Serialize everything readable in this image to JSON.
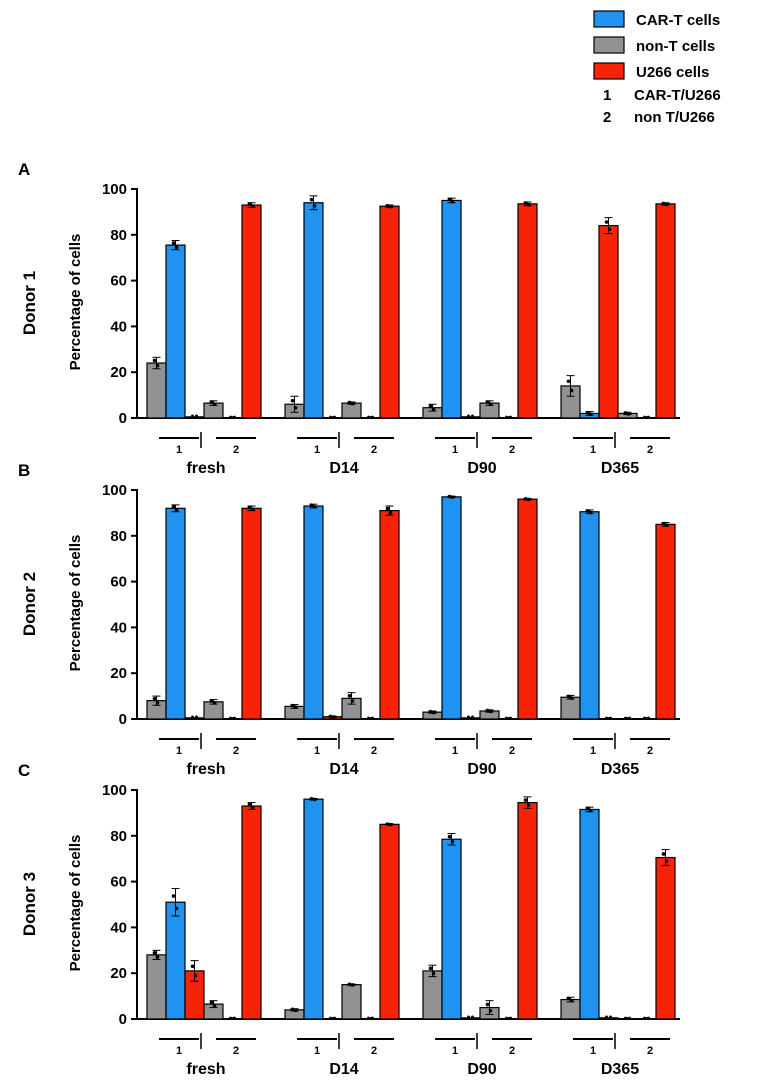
{
  "legend": {
    "series": [
      {
        "name": "CAR-T cells",
        "color": "#1f93ef"
      },
      {
        "name": "non-T cells",
        "color": "#929292"
      },
      {
        "name": "U266 cells",
        "color": "#f72307"
      }
    ],
    "groups": [
      {
        "key": "1",
        "label": "CAR-T/U266"
      },
      {
        "key": "2",
        "label": "non T/U266"
      }
    ]
  },
  "colors": {
    "car_t": "#1f93ef",
    "non_t": "#929292",
    "u266": "#f72307"
  },
  "chart_data": [
    {
      "panel_label": "A",
      "donor_label": "Donor 1",
      "type": "bar",
      "ylabel": "Percentage of cells",
      "ylim": [
        0,
        100
      ],
      "yticks": [
        0,
        20,
        40,
        60,
        80,
        100
      ],
      "timepoints": [
        "fresh",
        "D14",
        "D90",
        "D365"
      ],
      "group_labels": [
        "1",
        "2"
      ],
      "data": [
        {
          "g1": [
            [
              24,
              2.5,
              "non_t"
            ],
            [
              75.5,
              2,
              "car_t"
            ],
            [
              0.5,
              0,
              "u266"
            ]
          ],
          "g2": [
            [
              6.5,
              1,
              "non_t"
            ],
            [
              0,
              0,
              "car_t"
            ],
            [
              93,
              1,
              "u266"
            ]
          ]
        },
        {
          "g1": [
            [
              6,
              3.5,
              "non_t"
            ],
            [
              94,
              3,
              "car_t"
            ],
            [
              0,
              0,
              "u266"
            ]
          ],
          "g2": [
            [
              6.5,
              0.5,
              "non_t"
            ],
            [
              0,
              0,
              "car_t"
            ],
            [
              92.5,
              0.5,
              "u266"
            ]
          ]
        },
        {
          "g1": [
            [
              4.5,
              1.5,
              "non_t"
            ],
            [
              95,
              1,
              "car_t"
            ],
            [
              0.5,
              0,
              "u266"
            ]
          ],
          "g2": [
            [
              6.5,
              1,
              "non_t"
            ],
            [
              0,
              0,
              "car_t"
            ],
            [
              93.5,
              0.8,
              "u266"
            ]
          ]
        },
        {
          "g1": [
            [
              14,
              4.5,
              "non_t"
            ],
            [
              2,
              0.8,
              "car_t"
            ],
            [
              84,
              3.5,
              "u266"
            ]
          ],
          "g2": [
            [
              2,
              0.5,
              "non_t"
            ],
            [
              0,
              0,
              "car_t"
            ],
            [
              93.5,
              0.5,
              "u266"
            ]
          ]
        }
      ]
    },
    {
      "panel_label": "B",
      "donor_label": "Donor 2",
      "type": "bar",
      "ylabel": "Percentage of cells",
      "ylim": [
        0,
        100
      ],
      "yticks": [
        0,
        20,
        40,
        60,
        80,
        100
      ],
      "timepoints": [
        "fresh",
        "D14",
        "D90",
        "D365"
      ],
      "group_labels": [
        "1",
        "2"
      ],
      "data": [
        {
          "g1": [
            [
              8,
              2,
              "non_t"
            ],
            [
              92,
              1.5,
              "car_t"
            ],
            [
              0.5,
              0,
              "u266"
            ]
          ],
          "g2": [
            [
              7.5,
              1,
              "non_t"
            ],
            [
              0,
              0,
              "car_t"
            ],
            [
              92,
              1,
              "u266"
            ]
          ]
        },
        {
          "g1": [
            [
              5.5,
              0.8,
              "non_t"
            ],
            [
              93,
              0.8,
              "car_t"
            ],
            [
              1,
              0.3,
              "u266"
            ]
          ],
          "g2": [
            [
              9,
              2.5,
              "non_t"
            ],
            [
              0,
              0,
              "car_t"
            ],
            [
              91,
              2,
              "u266"
            ]
          ]
        },
        {
          "g1": [
            [
              3,
              0.5,
              "non_t"
            ],
            [
              97,
              0.3,
              "car_t"
            ],
            [
              0.5,
              0,
              "u266"
            ]
          ],
          "g2": [
            [
              3.5,
              0.5,
              "non_t"
            ],
            [
              0,
              0,
              "car_t"
            ],
            [
              96,
              0.3,
              "u266"
            ]
          ]
        },
        {
          "g1": [
            [
              9.5,
              0.8,
              "non_t"
            ],
            [
              90.5,
              0.8,
              "car_t"
            ],
            [
              0,
              0,
              "u266"
            ]
          ],
          "g2": [
            [
              0,
              0,
              "non_t"
            ],
            [
              0,
              0,
              "car_t"
            ],
            [
              85,
              0.8,
              "u266"
            ]
          ]
        }
      ]
    },
    {
      "panel_label": "C",
      "donor_label": "Donor 3",
      "type": "bar",
      "ylabel": "Percentage of cells",
      "ylim": [
        0,
        100
      ],
      "yticks": [
        0,
        20,
        40,
        60,
        80,
        100
      ],
      "timepoints": [
        "fresh",
        "D14",
        "D90",
        "D365"
      ],
      "group_labels": [
        "1",
        "2"
      ],
      "data": [
        {
          "g1": [
            [
              28,
              2,
              "non_t"
            ],
            [
              51,
              6,
              "car_t"
            ],
            [
              21,
              4.5,
              "u266"
            ]
          ],
          "g2": [
            [
              6.5,
              1.5,
              "non_t"
            ],
            [
              0,
              0,
              "car_t"
            ],
            [
              93,
              1.5,
              "u266"
            ]
          ]
        },
        {
          "g1": [
            [
              4,
              0.5,
              "non_t"
            ],
            [
              96,
              0.3,
              "car_t"
            ],
            [
              0,
              0,
              "u266"
            ]
          ],
          "g2": [
            [
              15,
              0.3,
              "non_t"
            ],
            [
              0,
              0,
              "car_t"
            ],
            [
              85,
              0.3,
              "u266"
            ]
          ]
        },
        {
          "g1": [
            [
              21,
              2.5,
              "non_t"
            ],
            [
              78.5,
              2.5,
              "car_t"
            ],
            [
              0.5,
              0,
              "u266"
            ]
          ],
          "g2": [
            [
              5,
              3,
              "non_t"
            ],
            [
              0,
              0,
              "car_t"
            ],
            [
              94.5,
              2.5,
              "u266"
            ]
          ]
        },
        {
          "g1": [
            [
              8.5,
              1,
              "non_t"
            ],
            [
              91.5,
              1,
              "car_t"
            ],
            [
              0.5,
              0,
              "u266"
            ]
          ],
          "g2": [
            [
              0,
              0,
              "non_t"
            ],
            [
              0,
              0,
              "car_t"
            ],
            [
              70.5,
              3.5,
              "u266"
            ]
          ]
        }
      ]
    }
  ]
}
